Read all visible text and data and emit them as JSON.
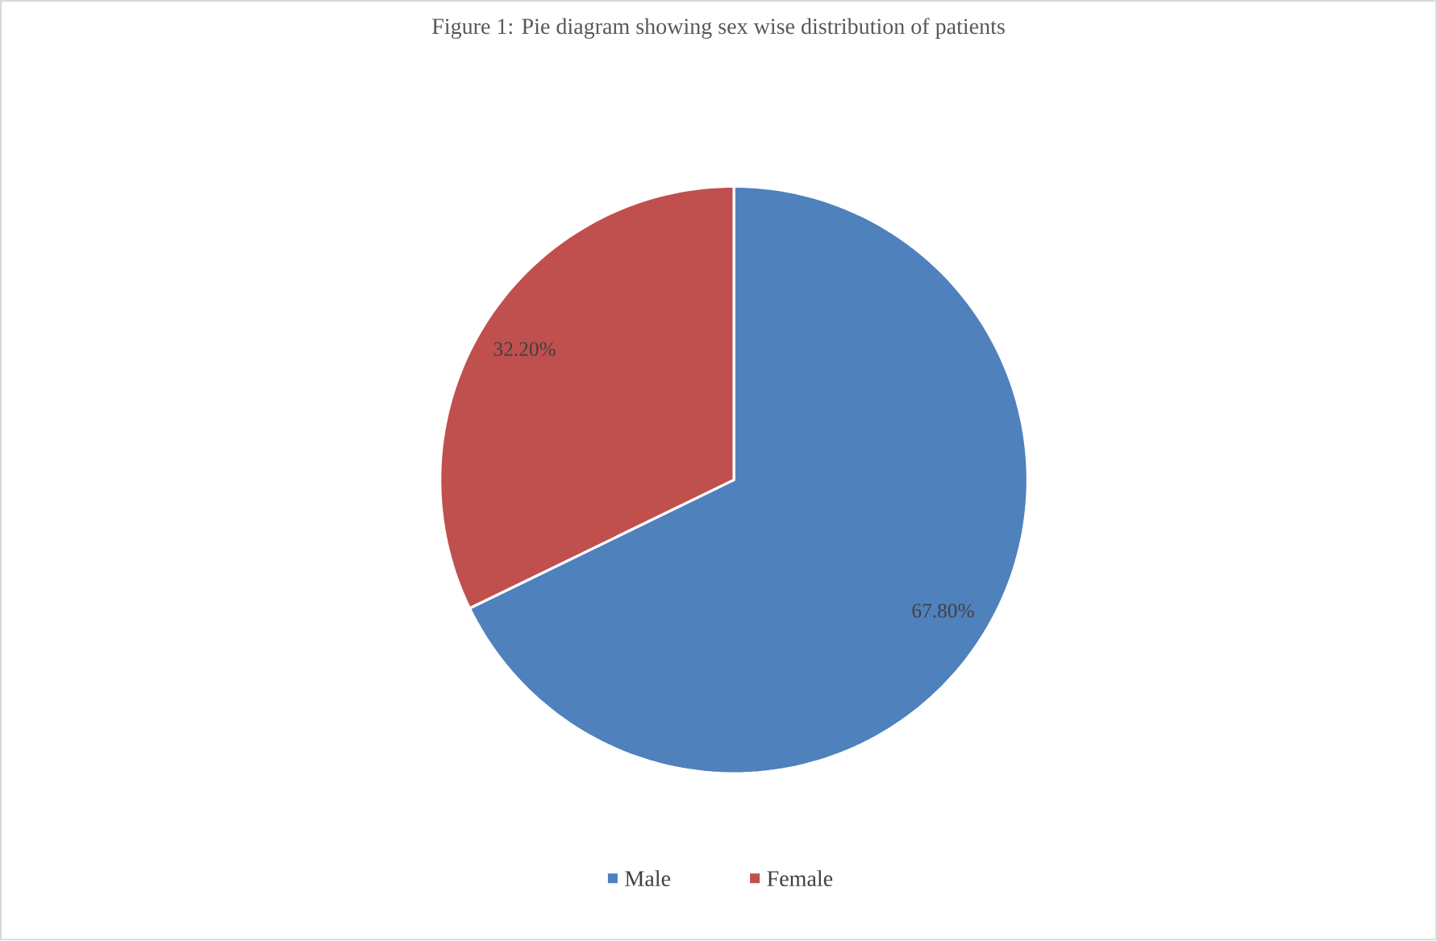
{
  "chart_data": {
    "type": "pie",
    "title": "Figure 1: Pie diagram showing sex wise distribution of patients",
    "categories": [
      "Male",
      "Female"
    ],
    "values": [
      67.8,
      32.2
    ],
    "value_labels": [
      "67.80%",
      "32.20%"
    ],
    "colors": [
      "#4f81bd",
      "#c0504d"
    ],
    "legend": "bottom"
  }
}
